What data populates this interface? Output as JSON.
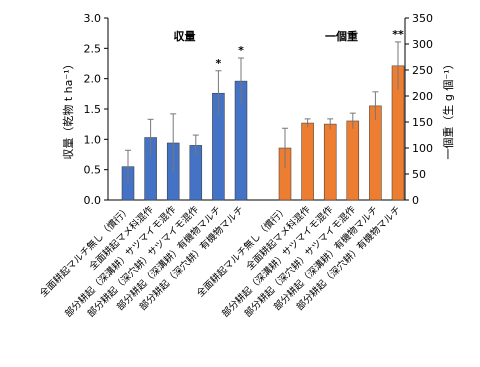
{
  "chart_data": {
    "type": "bar",
    "categories": [
      "全面耕起マルチ無し（慣行）",
      "全面耕起マメ科混作",
      "部分耕起（深溝耕）サツマイモ混作",
      "部分耕起（深穴耕）サツマイモ混作",
      "部分耕起（深溝耕）有機物マルチ",
      "部分耕起（深穴耕）有機物マルチ"
    ],
    "ylabel": "収量（乾物 t ha⁻¹）",
    "y2label": "一個重（生 g 個⁻¹）",
    "ylim": [
      0,
      3.0
    ],
    "yticks": [
      {
        "value": 0,
        "label": "0.0"
      },
      {
        "value": 0.5,
        "label": "0.5"
      },
      {
        "value": 1,
        "label": "1.0"
      },
      {
        "value": 1.5,
        "label": "1.5"
      },
      {
        "value": 2,
        "label": "2.0"
      },
      {
        "value": 2.5,
        "label": "2.5"
      },
      {
        "value": 3,
        "label": "3.0"
      }
    ],
    "y2lim": [
      0,
      350
    ],
    "y2ticks": [
      0,
      50,
      100,
      150,
      200,
      250,
      300,
      350
    ],
    "series": [
      {
        "name": "収量",
        "color": "#4472c4",
        "values": [
          0.55,
          1.03,
          0.94,
          0.9,
          1.76,
          1.96
        ],
        "errors": [
          0.27,
          0.3,
          0.48,
          0.17,
          0.37,
          0.38
        ],
        "markers": [
          {
            "index": 4,
            "text": "*"
          },
          {
            "index": 5,
            "text": "*"
          }
        ]
      },
      {
        "name": "一個重",
        "color": "#ed7d31",
        "axis": "y2",
        "values": [
          100,
          148,
          146,
          152,
          181,
          258
        ],
        "errors": [
          38,
          8,
          10,
          15,
          27,
          46
        ],
        "markers": [
          {
            "index": 5,
            "text": "**"
          }
        ]
      }
    ]
  }
}
